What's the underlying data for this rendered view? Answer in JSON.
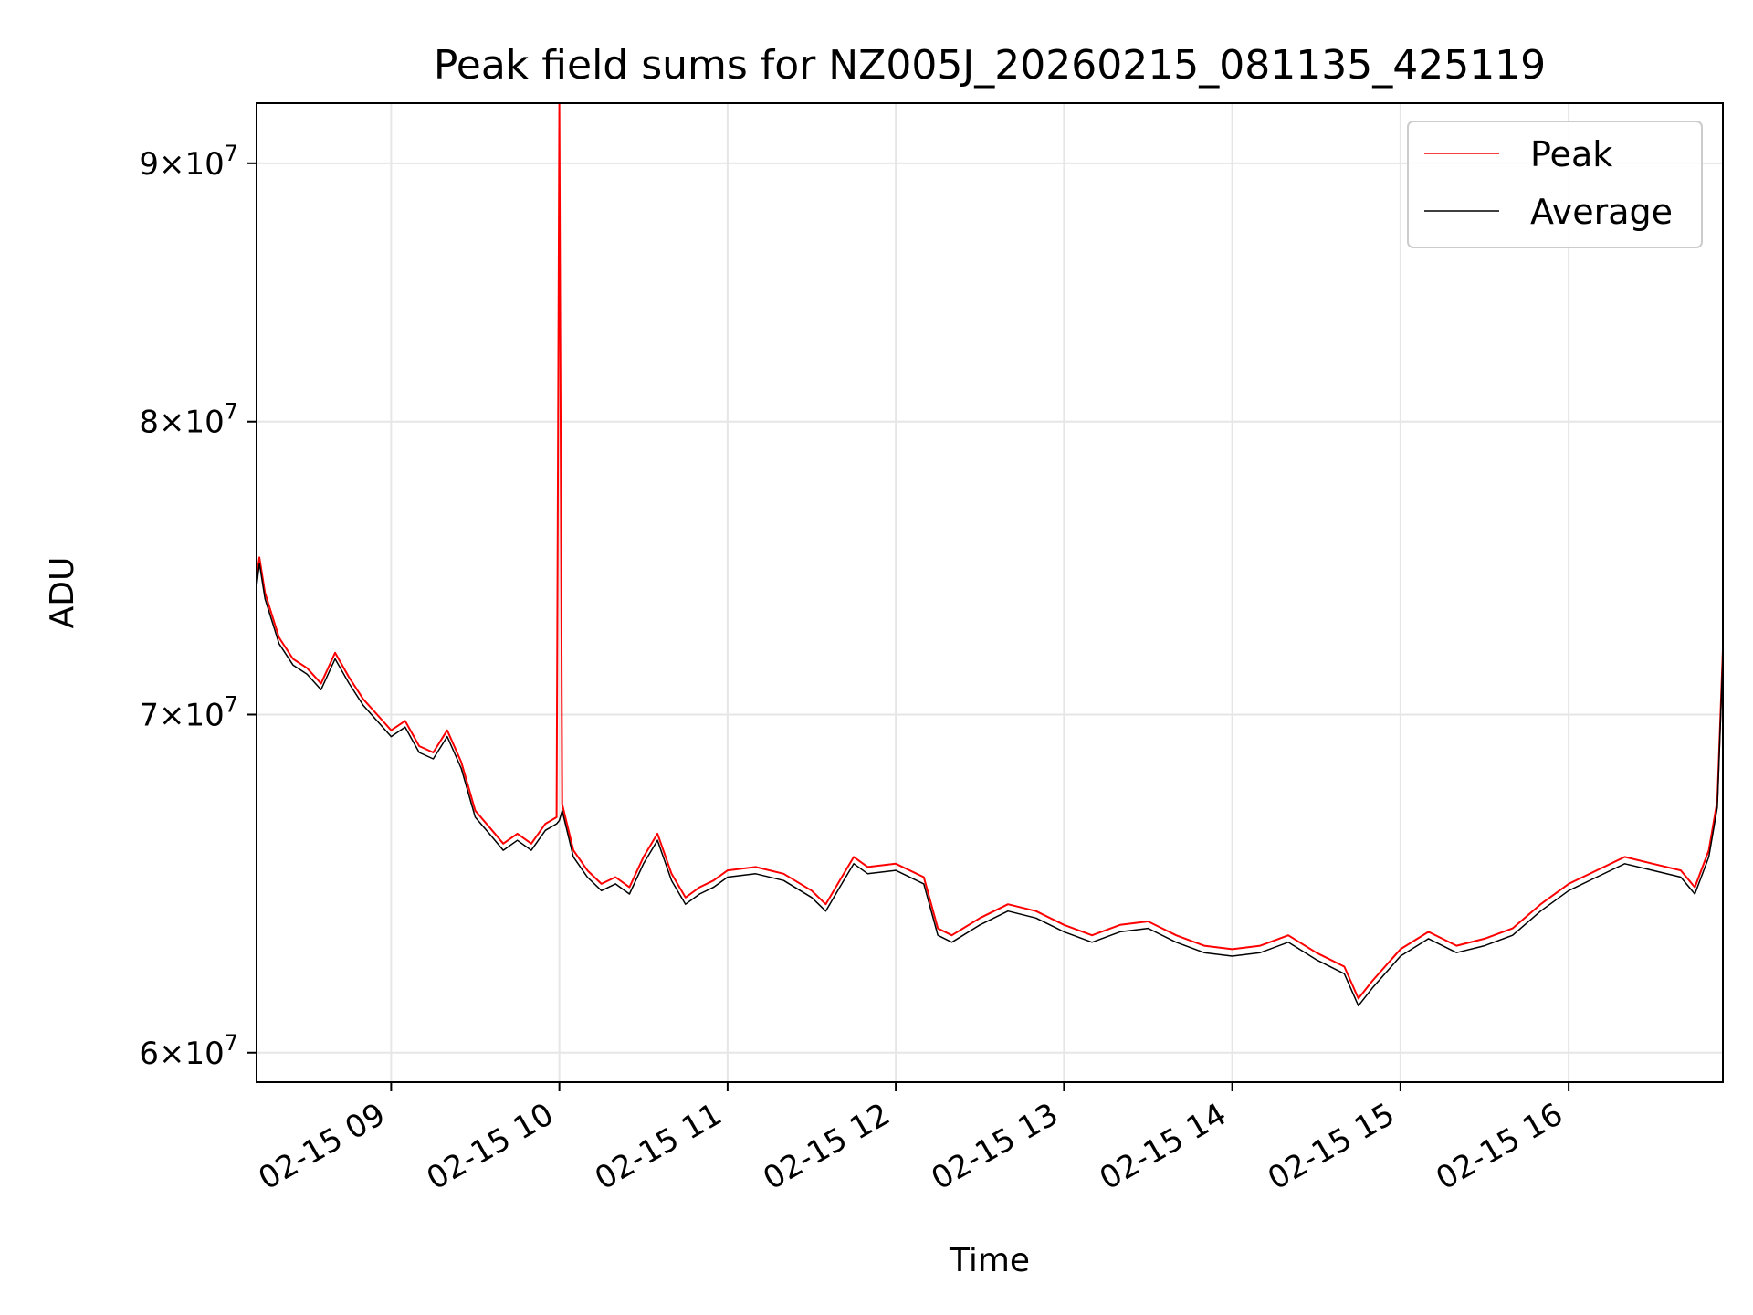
{
  "chart_data": {
    "type": "line",
    "title": "Peak field sums for NZ005J_20260215_081135_425119",
    "xlabel": "Time",
    "ylabel": "ADU",
    "x_range": [
      "2026-02-15 08:12",
      "2026-02-15 16:55"
    ],
    "ylim": [
      59200000,
      92500000
    ],
    "y_scale": "log",
    "grid": true,
    "legend_position": "top-right",
    "x_ticks": [
      {
        "time": "2026-02-15 09:00",
        "label": "02-15 09"
      },
      {
        "time": "2026-02-15 10:00",
        "label": "02-15 10"
      },
      {
        "time": "2026-02-15 11:00",
        "label": "02-15 11"
      },
      {
        "time": "2026-02-15 12:00",
        "label": "02-15 12"
      },
      {
        "time": "2026-02-15 13:00",
        "label": "02-15 13"
      },
      {
        "time": "2026-02-15 14:00",
        "label": "02-15 14"
      },
      {
        "time": "2026-02-15 15:00",
        "label": "02-15 15"
      },
      {
        "time": "2026-02-15 16:00",
        "label": "02-15 16"
      }
    ],
    "y_ticks": [
      {
        "value": 60000000,
        "mantissa": "6",
        "exponent": "7"
      },
      {
        "value": 70000000,
        "mantissa": "7",
        "exponent": "7"
      },
      {
        "value": 80000000,
        "mantissa": "8",
        "exponent": "7"
      },
      {
        "value": 90000000,
        "mantissa": "9",
        "exponent": "7"
      }
    ],
    "series": [
      {
        "name": "Peak",
        "color": "#ff0000",
        "x": [
          "2026-02-15 08:12",
          "2026-02-15 08:13",
          "2026-02-15 08:15",
          "2026-02-15 08:20",
          "2026-02-15 08:25",
          "2026-02-15 08:30",
          "2026-02-15 08:35",
          "2026-02-15 08:40",
          "2026-02-15 08:45",
          "2026-02-15 08:50",
          "2026-02-15 08:55",
          "2026-02-15 09:00",
          "2026-02-15 09:05",
          "2026-02-15 09:10",
          "2026-02-15 09:15",
          "2026-02-15 09:20",
          "2026-02-15 09:25",
          "2026-02-15 09:30",
          "2026-02-15 09:35",
          "2026-02-15 09:40",
          "2026-02-15 09:45",
          "2026-02-15 09:50",
          "2026-02-15 09:55",
          "2026-02-15 09:59",
          "2026-02-15 10:00",
          "2026-02-15 10:01",
          "2026-02-15 10:05",
          "2026-02-15 10:10",
          "2026-02-15 10:15",
          "2026-02-15 10:20",
          "2026-02-15 10:25",
          "2026-02-15 10:30",
          "2026-02-15 10:35",
          "2026-02-15 10:40",
          "2026-02-15 10:45",
          "2026-02-15 10:50",
          "2026-02-15 10:55",
          "2026-02-15 11:00",
          "2026-02-15 11:10",
          "2026-02-15 11:20",
          "2026-02-15 11:30",
          "2026-02-15 11:35",
          "2026-02-15 11:40",
          "2026-02-15 11:45",
          "2026-02-15 11:50",
          "2026-02-15 12:00",
          "2026-02-15 12:10",
          "2026-02-15 12:15",
          "2026-02-15 12:20",
          "2026-02-15 12:30",
          "2026-02-15 12:40",
          "2026-02-15 12:50",
          "2026-02-15 13:00",
          "2026-02-15 13:10",
          "2026-02-15 13:20",
          "2026-02-15 13:30",
          "2026-02-15 13:40",
          "2026-02-15 13:50",
          "2026-02-15 14:00",
          "2026-02-15 14:10",
          "2026-02-15 14:20",
          "2026-02-15 14:30",
          "2026-02-15 14:40",
          "2026-02-15 14:45",
          "2026-02-15 14:50",
          "2026-02-15 15:00",
          "2026-02-15 15:10",
          "2026-02-15 15:20",
          "2026-02-15 15:30",
          "2026-02-15 15:40",
          "2026-02-15 15:50",
          "2026-02-15 16:00",
          "2026-02-15 16:10",
          "2026-02-15 16:20",
          "2026-02-15 16:30",
          "2026-02-15 16:40",
          "2026-02-15 16:45",
          "2026-02-15 16:50",
          "2026-02-15 16:53",
          "2026-02-15 16:55"
        ],
        "y": [
          74500000,
          75200000,
          74000000,
          72500000,
          71800000,
          71500000,
          71000000,
          72000000,
          71200000,
          70500000,
          70000000,
          69500000,
          69800000,
          69000000,
          68800000,
          69500000,
          68500000,
          67000000,
          66500000,
          66000000,
          66300000,
          66000000,
          66600000,
          66800000,
          92500000,
          67200000,
          65800000,
          65200000,
          64800000,
          65000000,
          64700000,
          65600000,
          66300000,
          65100000,
          64400000,
          64700000,
          64900000,
          65200000,
          65300000,
          65100000,
          64600000,
          64200000,
          64900000,
          65600000,
          65300000,
          65400000,
          65000000,
          63500000,
          63300000,
          63800000,
          64200000,
          64000000,
          63600000,
          63300000,
          63600000,
          63700000,
          63300000,
          63000000,
          62900000,
          63000000,
          63300000,
          62800000,
          62400000,
          61500000,
          62000000,
          62900000,
          63400000,
          63000000,
          63200000,
          63500000,
          64200000,
          64800000,
          65200000,
          65600000,
          65400000,
          65200000,
          64700000,
          65800000,
          67300000,
          72100000
        ]
      },
      {
        "name": "Average",
        "color": "#000000",
        "x": [
          "2026-02-15 08:12",
          "2026-02-15 08:13",
          "2026-02-15 08:15",
          "2026-02-15 08:20",
          "2026-02-15 08:25",
          "2026-02-15 08:30",
          "2026-02-15 08:35",
          "2026-02-15 08:40",
          "2026-02-15 08:45",
          "2026-02-15 08:50",
          "2026-02-15 08:55",
          "2026-02-15 09:00",
          "2026-02-15 09:05",
          "2026-02-15 09:10",
          "2026-02-15 09:15",
          "2026-02-15 09:20",
          "2026-02-15 09:25",
          "2026-02-15 09:30",
          "2026-02-15 09:35",
          "2026-02-15 09:40",
          "2026-02-15 09:45",
          "2026-02-15 09:50",
          "2026-02-15 09:55",
          "2026-02-15 09:59",
          "2026-02-15 10:00",
          "2026-02-15 10:01",
          "2026-02-15 10:05",
          "2026-02-15 10:10",
          "2026-02-15 10:15",
          "2026-02-15 10:20",
          "2026-02-15 10:25",
          "2026-02-15 10:30",
          "2026-02-15 10:35",
          "2026-02-15 10:40",
          "2026-02-15 10:45",
          "2026-02-15 10:50",
          "2026-02-15 10:55",
          "2026-02-15 11:00",
          "2026-02-15 11:10",
          "2026-02-15 11:20",
          "2026-02-15 11:30",
          "2026-02-15 11:35",
          "2026-02-15 11:40",
          "2026-02-15 11:45",
          "2026-02-15 11:50",
          "2026-02-15 12:00",
          "2026-02-15 12:10",
          "2026-02-15 12:15",
          "2026-02-15 12:20",
          "2026-02-15 12:30",
          "2026-02-15 12:40",
          "2026-02-15 12:50",
          "2026-02-15 13:00",
          "2026-02-15 13:10",
          "2026-02-15 13:20",
          "2026-02-15 13:30",
          "2026-02-15 13:40",
          "2026-02-15 13:50",
          "2026-02-15 14:00",
          "2026-02-15 14:10",
          "2026-02-15 14:20",
          "2026-02-15 14:30",
          "2026-02-15 14:40",
          "2026-02-15 14:45",
          "2026-02-15 14:50",
          "2026-02-15 15:00",
          "2026-02-15 15:10",
          "2026-02-15 15:20",
          "2026-02-15 15:30",
          "2026-02-15 15:40",
          "2026-02-15 15:50",
          "2026-02-15 16:00",
          "2026-02-15 16:10",
          "2026-02-15 16:20",
          "2026-02-15 16:30",
          "2026-02-15 16:40",
          "2026-02-15 16:45",
          "2026-02-15 16:50",
          "2026-02-15 16:53",
          "2026-02-15 16:55"
        ],
        "y": [
          74200000,
          75000000,
          73800000,
          72300000,
          71600000,
          71300000,
          70800000,
          71800000,
          71000000,
          70300000,
          69800000,
          69300000,
          69600000,
          68800000,
          68600000,
          69300000,
          68300000,
          66800000,
          66300000,
          65800000,
          66100000,
          65800000,
          66400000,
          66600000,
          66700000,
          67000000,
          65600000,
          65000000,
          64600000,
          64800000,
          64500000,
          65400000,
          66100000,
          64900000,
          64200000,
          64500000,
          64700000,
          65000000,
          65100000,
          64900000,
          64400000,
          64000000,
          64700000,
          65400000,
          65100000,
          65200000,
          64800000,
          63300000,
          63100000,
          63600000,
          64000000,
          63800000,
          63400000,
          63100000,
          63400000,
          63500000,
          63100000,
          62800000,
          62700000,
          62800000,
          63100000,
          62600000,
          62200000,
          61300000,
          61800000,
          62700000,
          63200000,
          62800000,
          63000000,
          63300000,
          64000000,
          64600000,
          65000000,
          65400000,
          65200000,
          65000000,
          64500000,
          65600000,
          67100000,
          71900000
        ]
      }
    ]
  }
}
